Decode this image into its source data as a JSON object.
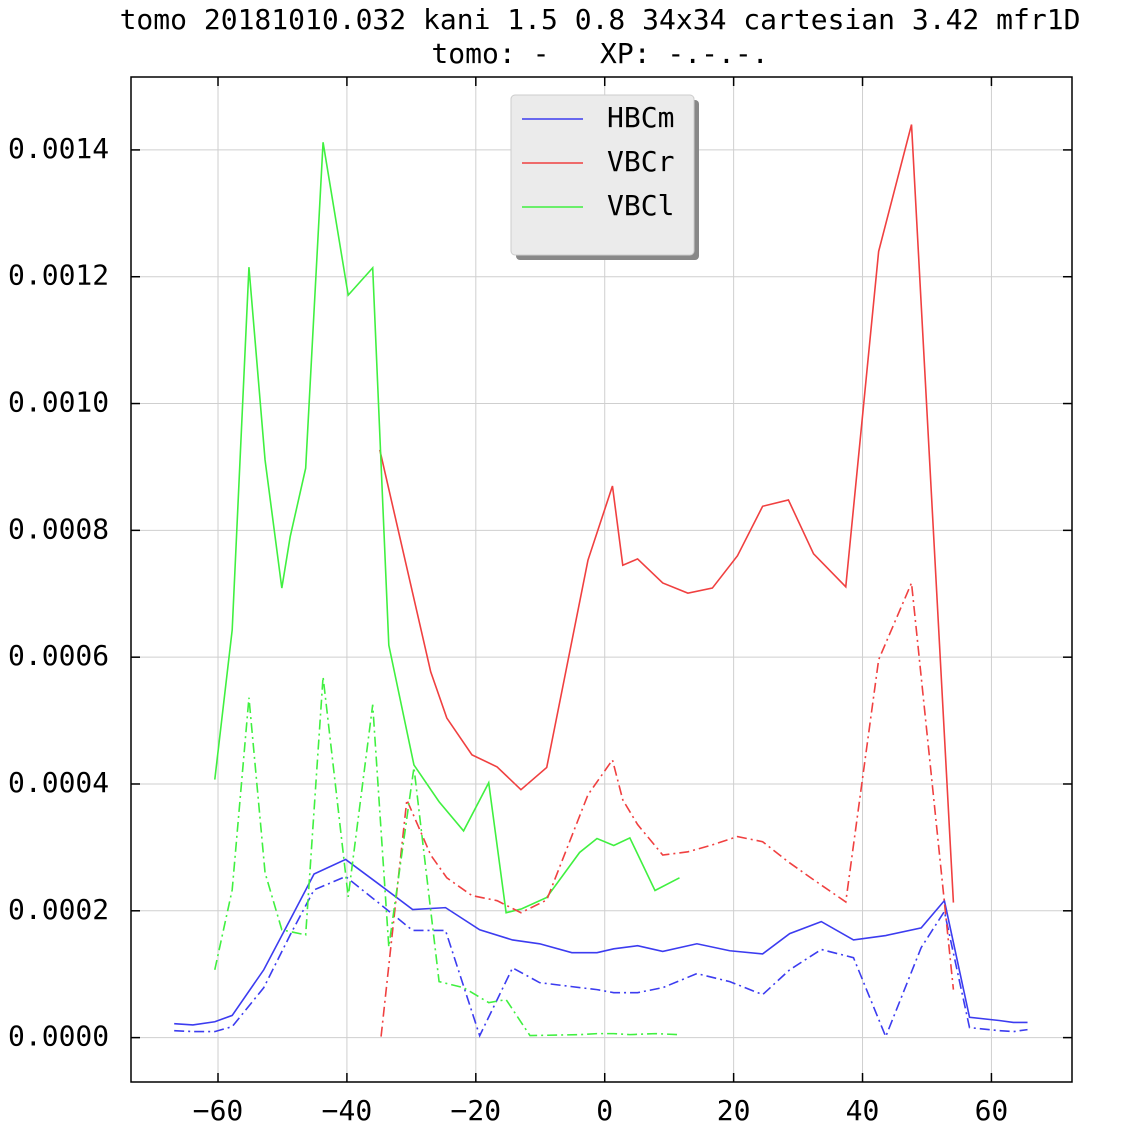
{
  "chart_data": {
    "type": "line",
    "title": "tomo 20181010.032 kani 1.5 0.8 34x34 cartesian 3.42 mfr1D",
    "subtitle": "tomo: -   XP: -.-.-.",
    "xlim": [
      -73.5,
      72.5
    ],
    "ylim": [
      -7e-05,
      0.001515
    ],
    "xticks": [
      {
        "value": -60,
        "label": "−60"
      },
      {
        "value": -40,
        "label": "−40"
      },
      {
        "value": -20,
        "label": "−20"
      },
      0,
      20,
      40,
      60
    ],
    "yticks": [
      {
        "value": 0,
        "label": "0.0000"
      },
      {
        "value": 0.0002,
        "label": "0.0002"
      },
      {
        "value": 0.0004,
        "label": "0.0004"
      },
      {
        "value": 0.0006,
        "label": "0.0006"
      },
      {
        "value": 0.0008,
        "label": "0.0008"
      },
      {
        "value": 0.001,
        "label": "0.0010"
      },
      {
        "value": 0.0012,
        "label": "0.0012"
      },
      {
        "value": 0.0014,
        "label": "0.0014"
      }
    ],
    "grid": true,
    "legend": "upper center",
    "series": [
      {
        "name": "HBCm",
        "color": "#3c3cf0",
        "linestyle": "solid",
        "x": [
          -66.8,
          -63.9,
          -60.5,
          -57.8,
          -52.9,
          -48.8,
          -45.1,
          -40.2,
          -34.9,
          -29.8,
          -24.7,
          -19.4,
          -14.3,
          -10.1,
          -5.1,
          -1.2,
          1.4,
          5.1,
          9.0,
          14.3,
          19.4,
          24.5,
          28.7,
          33.6,
          38.6,
          43.6,
          49.1,
          52.7,
          56.6,
          61.2,
          63.4,
          65.6
        ],
        "values": [
          2.2e-05,
          2e-05,
          2.5e-05,
          3.5e-05,
          0.000107,
          0.000186,
          0.000258,
          0.000281,
          0.000241,
          0.000202,
          0.000205,
          0.00017,
          0.000154,
          0.000148,
          0.000134,
          0.000134,
          0.00014,
          0.000145,
          0.000136,
          0.000148,
          0.000137,
          0.000132,
          0.000164,
          0.000183,
          0.000154,
          0.000161,
          0.000173,
          0.000216,
          3.2e-05,
          2.7e-05,
          2.4e-05,
          2.4e-05
        ]
      },
      {
        "name": "VBCr",
        "color": "#f04040",
        "linestyle": "solid",
        "x": [
          -34.9,
          -27.0,
          -24.5,
          -20.6,
          -16.7,
          -13.0,
          -9.0,
          -2.6,
          1.2,
          2.8,
          5.1,
          9.0,
          12.9,
          16.7,
          20.6,
          24.5,
          28.5,
          32.4,
          37.4,
          42.5,
          47.6,
          54.1
        ],
        "values": [
          0.000927,
          0.000577,
          0.000504,
          0.000446,
          0.000427,
          0.000391,
          0.000426,
          0.000753,
          0.00087,
          0.000745,
          0.000755,
          0.000717,
          0.000701,
          0.000709,
          0.00076,
          0.000838,
          0.000848,
          0.000763,
          0.000711,
          0.00124,
          0.00144,
          0.000213
        ]
      },
      {
        "name": "VBCl",
        "color": "#40f040",
        "linestyle": "solid",
        "x": [
          -60.5,
          -57.8,
          -55.2,
          -52.7,
          -50.1,
          -48.8,
          -46.4,
          -43.7,
          -39.8,
          -36.0,
          -33.5,
          -29.6,
          -25.7,
          -21.9,
          -18.0,
          -15.3,
          -12.9,
          -9.0,
          -3.9,
          -1.2,
          1.4,
          3.9,
          7.8,
          11.6
        ],
        "values": [
          0.000407,
          0.000643,
          0.001215,
          0.000911,
          0.000709,
          0.00079,
          0.000898,
          0.001412,
          0.001171,
          0.001214,
          0.000619,
          0.00043,
          0.000372,
          0.000326,
          0.000402,
          0.000197,
          0.000203,
          0.000221,
          0.000292,
          0.000314,
          0.000303,
          0.000315,
          0.000232,
          0.000252
        ]
      },
      {
        "color": "#3c3cf0",
        "linestyle": "dashdot",
        "x": [
          -66.8,
          -63.9,
          -60.5,
          -57.8,
          -52.9,
          -48.8,
          -45.1,
          -40.2,
          -34.9,
          -29.8,
          -24.7,
          -19.4,
          -14.3,
          -10.1,
          -5.1,
          -1.2,
          1.4,
          5.1,
          9.0,
          14.3,
          19.4,
          24.5,
          28.7,
          33.6,
          38.6,
          43.6,
          49.1,
          52.7,
          56.6,
          61.2,
          63.4,
          65.6
        ],
        "values": [
          1.1e-05,
          9.5e-06,
          9.5e-06,
          1.73e-05,
          7.88e-05,
          0.000162,
          0.000233,
          0.000254,
          0.000211,
          0.000169,
          0.000169,
          3e-06,
          0.00011,
          8.67e-05,
          8.04e-05,
          7.57e-05,
          7.09e-05,
          7.09e-05,
          7.88e-05,
          0.000101,
          8.83e-05,
          6.78e-05,
          0.000107,
          0.000139,
          0.000126,
          1.6e-06,
          0.000142,
          0.000199,
          1.58e-05,
          1.1e-05,
          9.5e-06,
          1.26e-05
        ]
      },
      {
        "color": "#f04040",
        "linestyle": "dashdot",
        "x": [
          -34.7,
          -30.7,
          -27.0,
          -24.5,
          -20.6,
          -16.7,
          -13.0,
          -9.0,
          -2.6,
          1.2,
          2.8,
          5.1,
          9.0,
          12.9,
          16.7,
          20.6,
          24.5,
          28.5,
          32.4,
          37.4,
          42.5,
          47.6,
          54.1
        ],
        "values": [
          1.6e-06,
          0.000375,
          0.000288,
          0.000252,
          0.000224,
          0.000216,
          0.000197,
          0.000217,
          0.000383,
          0.000438,
          0.000375,
          0.000336,
          0.000288,
          0.000293,
          0.000304,
          0.000317,
          0.000309,
          0.000277,
          0.000249,
          0.000214,
          0.000596,
          0.000717,
          7.57e-05
        ]
      },
      {
        "color": "#40f040",
        "linestyle": "dashdot",
        "x": [
          -60.5,
          -57.8,
          -55.2,
          -52.7,
          -50.1,
          -46.4,
          -43.7,
          -39.8,
          -36.0,
          -33.5,
          -29.6,
          -25.7,
          -21.9,
          -18.0,
          -15.3,
          -11.6,
          -3.9,
          -1.2,
          1.4,
          3.9,
          7.8,
          11.6
        ],
        "values": [
          0.000107,
          0.000233,
          0.000536,
          0.00026,
          0.00017,
          0.000162,
          0.000569,
          0.000222,
          0.000525,
          0.000143,
          0.000426,
          8.83e-05,
          7.88e-05,
          5.52e-05,
          5.99e-05,
          3.2e-06,
          4.7e-06,
          6.3e-06,
          6.3e-06,
          4.7e-06,
          6.3e-06,
          4.7e-06
        ]
      }
    ]
  }
}
